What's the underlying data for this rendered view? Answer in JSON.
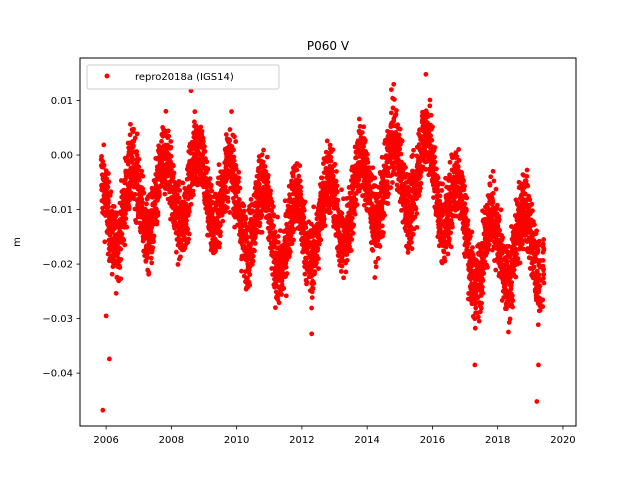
{
  "chart_data": {
    "type": "scatter",
    "title": "P060 V",
    "xlabel": "",
    "ylabel": "m",
    "xlim": [
      2005.2,
      2020.4
    ],
    "ylim": [
      -0.0497,
      0.0178
    ],
    "xticks": [
      2006,
      2008,
      2010,
      2012,
      2014,
      2016,
      2018,
      2020
    ],
    "xtick_labels": [
      "2006",
      "2008",
      "2010",
      "2012",
      "2014",
      "2016",
      "2018",
      "2020"
    ],
    "yticks": [
      -0.04,
      -0.03,
      -0.02,
      -0.01,
      0.0,
      0.01
    ],
    "ytick_labels": [
      "−0.04",
      "−0.03",
      "−0.02",
      "−0.01",
      "0.00",
      "0.01"
    ],
    "grid": false,
    "legend_position": "upper-left",
    "series": [
      {
        "name": "repro2018a (IGS14)",
        "color": "#ff0000",
        "marker": "circle",
        "x_range": [
          2005.85,
          2019.42
        ],
        "seasonal_minima": [
          2006.2,
          2007.2,
          2008.2,
          2009.2,
          2010.3,
          2011.3,
          2012.3,
          2013.2,
          2014.2,
          2015.2,
          2016.2,
          2017.3,
          2018.3,
          2019.3
        ],
        "seasonal_maxima": [
          2006.8,
          2007.8,
          2008.8,
          2009.8,
          2010.8,
          2011.8,
          2012.8,
          2013.8,
          2014.8,
          2015.8,
          2016.8,
          2017.8,
          2018.8
        ],
        "typical_range": [
          -0.032,
          0.008
        ],
        "outliers": [
          {
            "x": 2005.9,
            "y": -0.0468
          },
          {
            "x": 2006.1,
            "y": -0.0374
          },
          {
            "x": 2006.0,
            "y": -0.0295
          },
          {
            "x": 2008.6,
            "y": 0.0118
          },
          {
            "x": 2012.3,
            "y": -0.0328
          },
          {
            "x": 2015.8,
            "y": 0.0148
          },
          {
            "x": 2019.2,
            "y": -0.0452
          },
          {
            "x": 2019.25,
            "y": -0.0385
          },
          {
            "x": 2017.3,
            "y": -0.0385
          }
        ]
      }
    ]
  }
}
